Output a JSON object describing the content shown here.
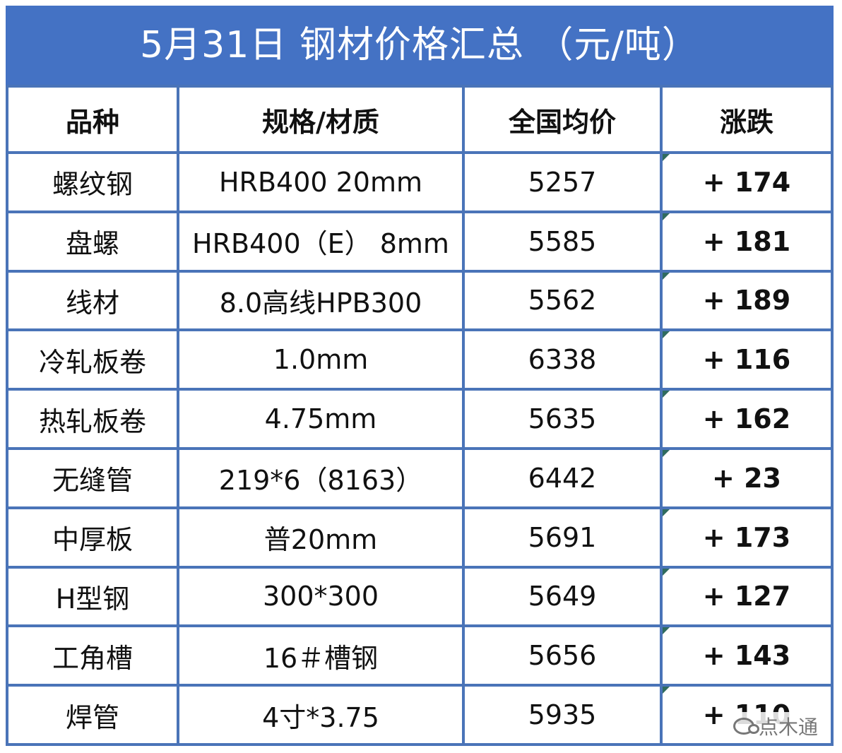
{
  "title": "5月31日 钢材价格汇总 （元/吨）",
  "headers": [
    "品种",
    "规格/材质",
    "全国均价",
    "涨跌"
  ],
  "rows": [
    {
      "variety": "螺纹钢",
      "spec": "HRB400 20mm",
      "price": "5257",
      "change": "+ 174"
    },
    {
      "variety": "盘螺",
      "spec": "HRB400（E） 8mm",
      "price": "5585",
      "change": "+ 181"
    },
    {
      "variety": "线材",
      "spec": "8.0高线HPB300",
      "price": "5562",
      "change": "+ 189"
    },
    {
      "variety": "冷轧板卷",
      "spec": "1.0mm",
      "price": "6338",
      "change": "+ 116"
    },
    {
      "variety": "热轧板卷",
      "spec": "4.75mm",
      "price": "5635",
      "change": "+ 162"
    },
    {
      "variety": "无缝管",
      "spec": "219*6（8163）",
      "price": "6442",
      "change": "+ 23"
    },
    {
      "variety": "中厚板",
      "spec": "普20mm",
      "price": "5691",
      "change": "+ 173"
    },
    {
      "variety": "H型钢",
      "spec": "300*300",
      "price": "5649",
      "change": "+ 127"
    },
    {
      "variety": "工角槽",
      "spec": "16＃槽钢",
      "price": "5656",
      "change": "+ 143"
    },
    {
      "variety": "焊管",
      "spec": "4寸*3.75",
      "price": "5935",
      "change": "+ 110"
    }
  ],
  "watermark": "点木通",
  "colors": {
    "header_bg": "#4472c4",
    "border": "#4a74b8",
    "change_text": "#d42a22"
  }
}
